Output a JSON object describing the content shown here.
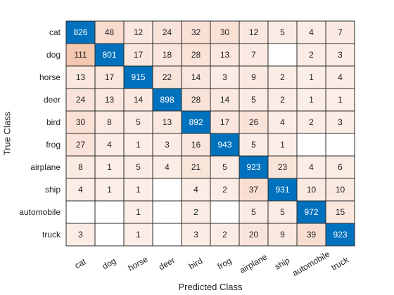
{
  "chart_data": {
    "type": "heatmap",
    "title": "",
    "xlabel": "Predicted Class",
    "ylabel": "True Class",
    "row_labels": [
      "cat",
      "dog",
      "horse",
      "deer",
      "bird",
      "frog",
      "airplane",
      "ship",
      "automobile",
      "truck"
    ],
    "col_labels": [
      "cat",
      "dog",
      "horse",
      "deer",
      "bird",
      "frog",
      "airplane",
      "ship",
      "automobile",
      "truck"
    ],
    "values": [
      [
        826,
        48,
        12,
        24,
        32,
        30,
        12,
        5,
        4,
        7
      ],
      [
        111,
        801,
        17,
        18,
        28,
        13,
        7,
        null,
        2,
        3
      ],
      [
        13,
        17,
        915,
        22,
        14,
        3,
        9,
        2,
        1,
        4
      ],
      [
        24,
        13,
        14,
        898,
        28,
        14,
        5,
        2,
        1,
        1
      ],
      [
        30,
        8,
        5,
        13,
        892,
        17,
        26,
        4,
        2,
        3
      ],
      [
        27,
        4,
        1,
        3,
        16,
        943,
        5,
        1,
        null,
        null
      ],
      [
        8,
        1,
        5,
        4,
        21,
        5,
        923,
        23,
        4,
        6
      ],
      [
        4,
        1,
        1,
        null,
        4,
        2,
        37,
        931,
        10,
        10
      ],
      [
        null,
        null,
        1,
        null,
        2,
        null,
        5,
        5,
        972,
        15
      ],
      [
        3,
        null,
        1,
        null,
        3,
        2,
        20,
        9,
        39,
        923
      ]
    ],
    "colors": {
      "diagonal": "#0072bd",
      "off_diagonal_low": "#fbeee8",
      "off_diagonal_high": "#f4c7b0",
      "diagonal_text": "#ffffff",
      "off_diagonal_text": "#222222",
      "empty": "#ffffff",
      "grid": "#2b2b2b"
    }
  }
}
